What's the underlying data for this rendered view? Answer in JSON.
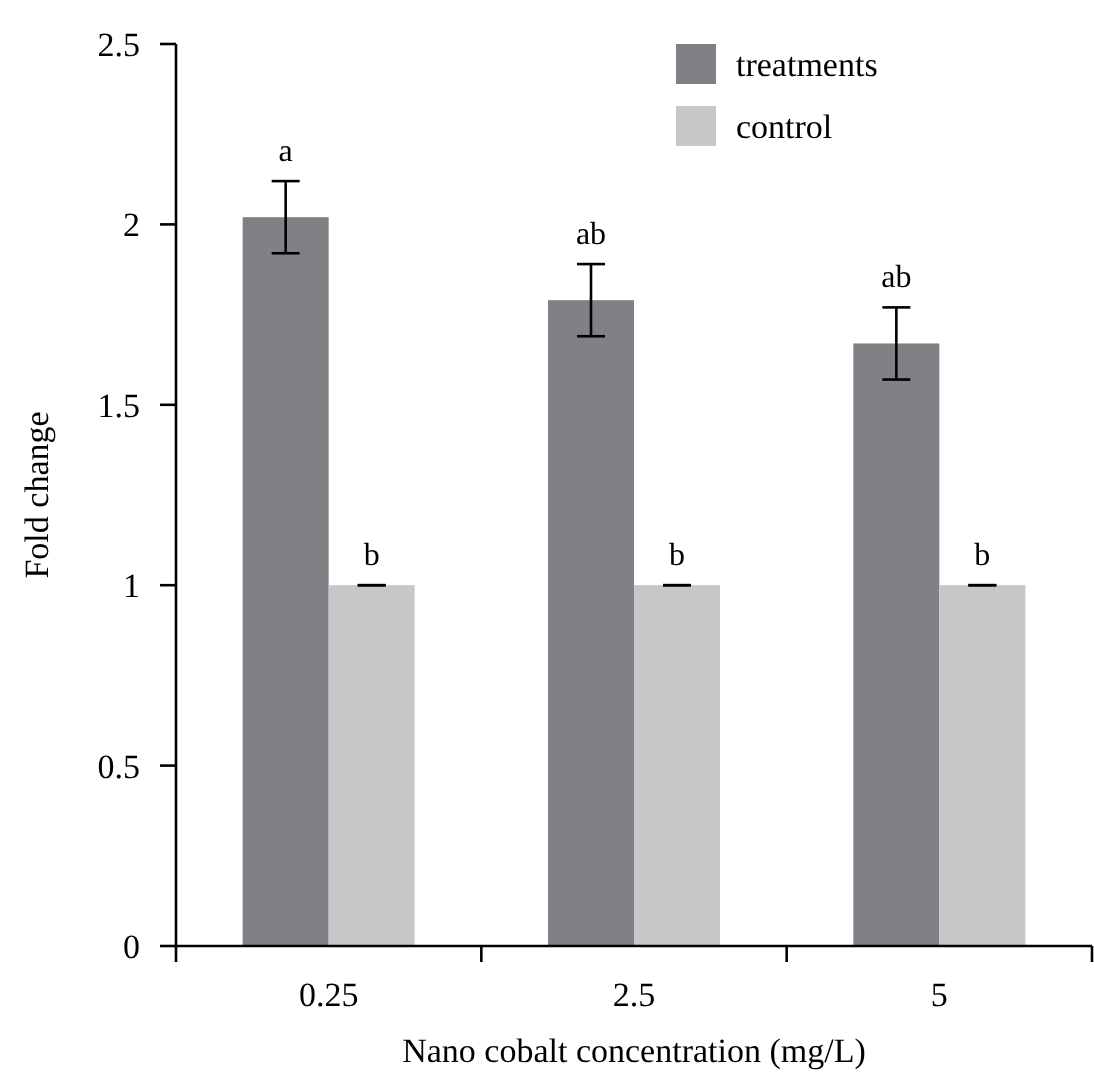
{
  "chart_data": {
    "type": "bar",
    "xlabel": "Nano cobalt concentration (mg/L)",
    "ylabel": "Fold change",
    "categories": [
      "0.25",
      "2.5",
      "5"
    ],
    "series": [
      {
        "name": "treatments",
        "color": "#808184",
        "values": [
          2.02,
          1.79,
          1.67
        ],
        "errors": [
          0.1,
          0.1,
          0.1
        ],
        "value_labels": [
          "a",
          "ab",
          "ab"
        ]
      },
      {
        "name": "control",
        "color": "#c6c7c9",
        "values": [
          1,
          1,
          1
        ],
        "errors": [
          0,
          0,
          0
        ],
        "value_labels": [
          "b",
          "b",
          "b"
        ]
      }
    ],
    "ylim": [
      0,
      2.5
    ],
    "yticks": [
      0,
      0.5,
      1,
      1.5,
      2,
      2.5
    ],
    "grid": false,
    "legend": "top right"
  }
}
